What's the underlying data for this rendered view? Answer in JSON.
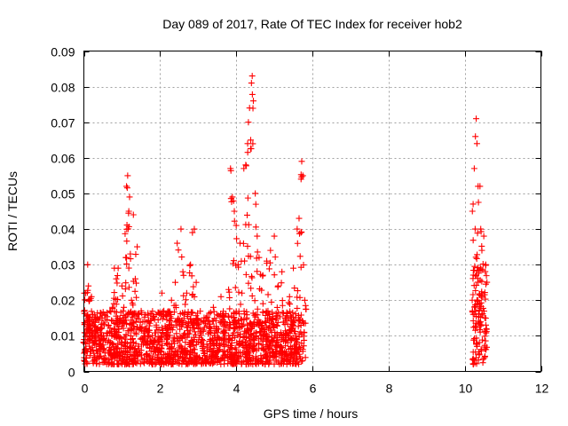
{
  "chart_data": {
    "type": "scatter",
    "title": "Day 089 of 2017, Rate Of TEC Index for receiver hob2",
    "xlabel": "GPS time / hours",
    "ylabel": "ROTI / TECUs",
    "xlim": [
      0,
      12
    ],
    "ylim": [
      0,
      0.09
    ],
    "xticks": [
      0,
      2,
      4,
      6,
      8,
      10,
      12
    ],
    "yticks": [
      0,
      0.01,
      0.02,
      0.03,
      0.04,
      0.05,
      0.06,
      0.07,
      0.08,
      0.09
    ],
    "xtick_labels": [
      "0",
      "2",
      "4",
      "6",
      "8",
      "10",
      "12"
    ],
    "ytick_labels": [
      "0",
      "0.01",
      "0.02",
      "0.03",
      "0.04",
      "0.05",
      "0.06",
      "0.07",
      "0.08",
      "0.09"
    ],
    "grid": true,
    "marker": "+",
    "color": "#ff0000",
    "series": [
      {
        "name": "ROTI",
        "points": [
          [
            0.0,
            0.008
          ],
          [
            0.05,
            0.022
          ],
          [
            0.05,
            0.006
          ],
          [
            0.1,
            0.03
          ],
          [
            0.1,
            0.012
          ],
          [
            0.12,
            0.024
          ],
          [
            0.15,
            0.02
          ],
          [
            0.15,
            0.009
          ],
          [
            0.2,
            0.021
          ],
          [
            0.22,
            0.014
          ],
          [
            0.25,
            0.008
          ],
          [
            0.3,
            0.011
          ],
          [
            0.35,
            0.015
          ],
          [
            0.4,
            0.007
          ],
          [
            0.45,
            0.012
          ],
          [
            0.5,
            0.009
          ],
          [
            0.55,
            0.016
          ],
          [
            0.6,
            0.01
          ],
          [
            0.65,
            0.013
          ],
          [
            0.7,
            0.008
          ],
          [
            0.75,
            0.018
          ],
          [
            0.8,
            0.012
          ],
          [
            0.8,
            0.029
          ],
          [
            0.85,
            0.026
          ],
          [
            0.9,
            0.029
          ],
          [
            0.95,
            0.015
          ],
          [
            1.0,
            0.024
          ],
          [
            1.05,
            0.018
          ],
          [
            1.1,
            0.032
          ],
          [
            1.12,
            0.052
          ],
          [
            1.15,
            0.055
          ],
          [
            1.18,
            0.045
          ],
          [
            1.2,
            0.049
          ],
          [
            1.22,
            0.033
          ],
          [
            1.25,
            0.02
          ],
          [
            1.3,
            0.044
          ],
          [
            1.35,
            0.026
          ],
          [
            1.4,
            0.035
          ],
          [
            1.45,
            0.016
          ],
          [
            1.5,
            0.012
          ],
          [
            1.55,
            0.009
          ],
          [
            1.6,
            0.014
          ],
          [
            1.7,
            0.011
          ],
          [
            1.8,
            0.007
          ],
          [
            1.9,
            0.013
          ],
          [
            2.0,
            0.009
          ],
          [
            2.05,
            0.022
          ],
          [
            2.1,
            0.017
          ],
          [
            2.2,
            0.012
          ],
          [
            2.3,
            0.02
          ],
          [
            2.4,
            0.025
          ],
          [
            2.45,
            0.036
          ],
          [
            2.5,
            0.014
          ],
          [
            2.55,
            0.04
          ],
          [
            2.6,
            0.028
          ],
          [
            2.7,
            0.022
          ],
          [
            2.8,
            0.03
          ],
          [
            2.85,
            0.039
          ],
          [
            2.9,
            0.04
          ],
          [
            2.95,
            0.025
          ],
          [
            3.0,
            0.012
          ],
          [
            3.1,
            0.009
          ],
          [
            3.2,
            0.015
          ],
          [
            3.3,
            0.011
          ],
          [
            3.4,
            0.018
          ],
          [
            3.5,
            0.009
          ],
          [
            3.6,
            0.021
          ],
          [
            3.7,
            0.014
          ],
          [
            3.8,
            0.023
          ],
          [
            3.85,
            0.057
          ],
          [
            3.9,
            0.049
          ],
          [
            3.95,
            0.045
          ],
          [
            4.0,
            0.041
          ],
          [
            4.05,
            0.03
          ],
          [
            4.1,
            0.036
          ],
          [
            4.15,
            0.022
          ],
          [
            4.2,
            0.057
          ],
          [
            4.25,
            0.058
          ],
          [
            4.3,
            0.064
          ],
          [
            4.32,
            0.07
          ],
          [
            4.35,
            0.074
          ],
          [
            4.38,
            0.065
          ],
          [
            4.4,
            0.081
          ],
          [
            4.42,
            0.083
          ],
          [
            4.45,
            0.076
          ],
          [
            4.5,
            0.05
          ],
          [
            4.55,
            0.038
          ],
          [
            4.6,
            0.032
          ],
          [
            4.7,
            0.027
          ],
          [
            4.8,
            0.031
          ],
          [
            4.9,
            0.034
          ],
          [
            5.0,
            0.038
          ],
          [
            5.1,
            0.024
          ],
          [
            5.2,
            0.028
          ],
          [
            5.3,
            0.015
          ],
          [
            5.4,
            0.021
          ],
          [
            5.5,
            0.029
          ],
          [
            5.6,
            0.04
          ],
          [
            5.65,
            0.043
          ],
          [
            5.7,
            0.039
          ],
          [
            5.72,
            0.059
          ],
          [
            5.75,
            0.055
          ],
          [
            5.8,
            0.02
          ],
          [
            10.2,
            0.045
          ],
          [
            10.22,
            0.047
          ],
          [
            10.25,
            0.057
          ],
          [
            10.28,
            0.066
          ],
          [
            10.3,
            0.071
          ],
          [
            10.32,
            0.064
          ],
          [
            10.35,
            0.052
          ],
          [
            10.4,
            0.052
          ],
          [
            10.42,
            0.04
          ],
          [
            10.45,
            0.034
          ],
          [
            10.5,
            0.038
          ],
          [
            10.55,
            0.03
          ]
        ]
      }
    ],
    "dense_bands": [
      {
        "x_range": [
          0.0,
          5.82
        ],
        "y_range": [
          0.002,
          0.017
        ],
        "note": "continuous dense cluster of + markers"
      },
      {
        "x_range": [
          10.2,
          10.58
        ],
        "y_range": [
          0.002,
          0.03
        ],
        "note": "continuous dense cluster of + markers"
      }
    ]
  }
}
